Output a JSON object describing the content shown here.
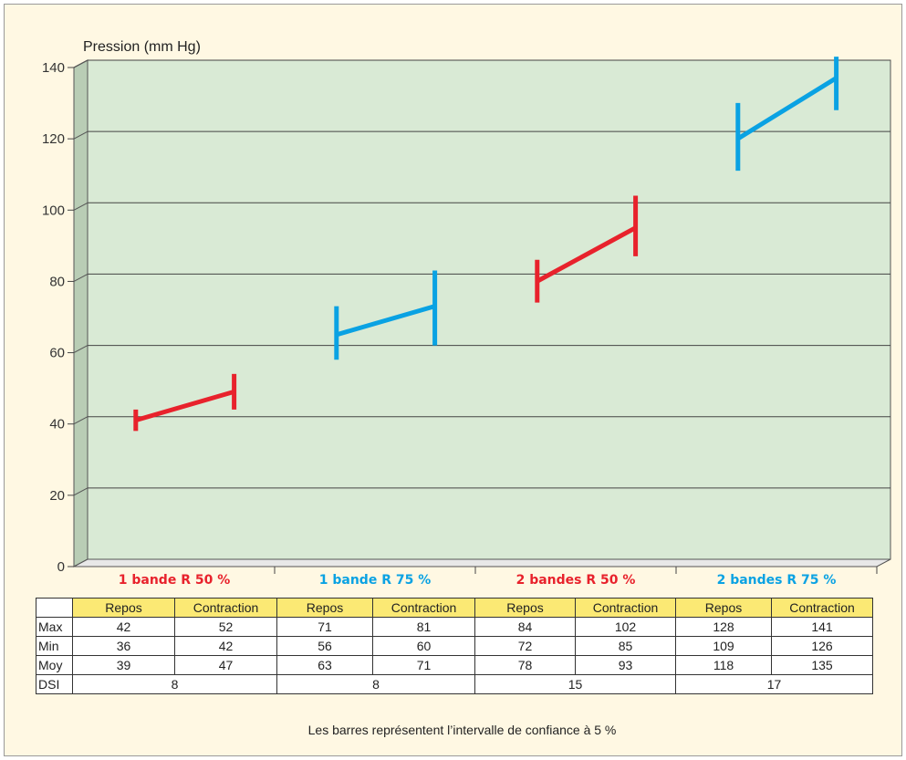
{
  "chart_data": {
    "type": "line",
    "ylabel": "Pression (mm Hg)",
    "ylim": [
      0,
      140
    ],
    "yticks": [
      0,
      20,
      40,
      60,
      80,
      100,
      120,
      140
    ],
    "grid": true,
    "background": "#d9ead5",
    "groups": [
      {
        "name": "1 bande R 50 %",
        "color": "#e8222c",
        "points": [
          {
            "label": "Repos",
            "max": 42,
            "min": 36,
            "mean": 39
          },
          {
            "label": "Contraction",
            "max": 52,
            "min": 42,
            "mean": 47
          }
        ],
        "dsi": "8"
      },
      {
        "name": "1 bande R 75 %",
        "color": "#0aa2e3",
        "points": [
          {
            "label": "Repos",
            "max": 71,
            "min": 56,
            "mean": 63
          },
          {
            "label": "Contraction",
            "max": 81,
            "min": 60,
            "mean": 71
          }
        ],
        "dsi": "8"
      },
      {
        "name": "2 bandes R 50 %",
        "color": "#e8222c",
        "points": [
          {
            "label": "Repos",
            "max": 84,
            "min": 72,
            "mean": 78
          },
          {
            "label": "Contraction",
            "max": 102,
            "min": 85,
            "mean": 93
          }
        ],
        "dsi": "15"
      },
      {
        "name": "2 bandes R 75 %",
        "color": "#0aa2e3",
        "points": [
          {
            "label": "Repos",
            "max": 128,
            "min": 109,
            "mean": 118
          },
          {
            "label": "Contraction",
            "max": 141,
            "min": 126,
            "mean": 135
          }
        ],
        "dsi": "17"
      }
    ]
  },
  "table": {
    "row_labels": {
      "max": "Max",
      "min": "Min",
      "mean": "Moy",
      "dsi": "DSI"
    },
    "header_color": "#fbe974"
  },
  "caption": "Les barres représentent l’intervalle de confiance à 5 %"
}
